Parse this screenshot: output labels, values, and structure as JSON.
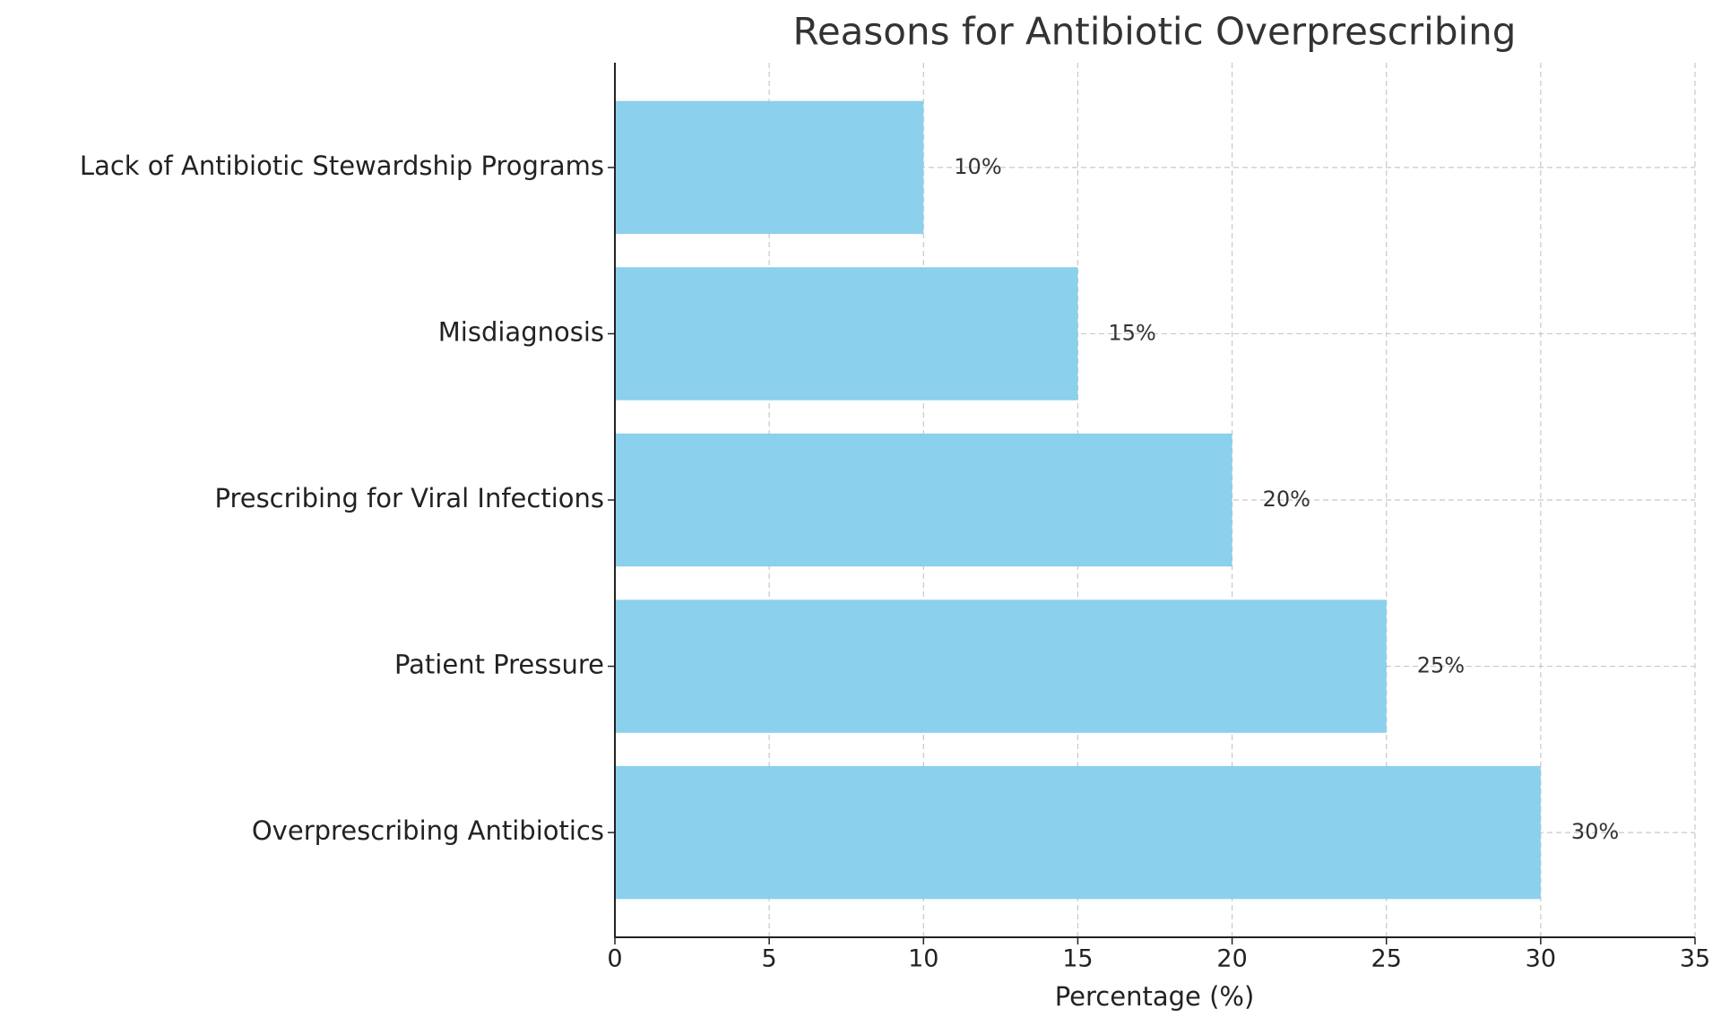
{
  "chart_data": {
    "type": "barh",
    "title": "Reasons for Antibiotic Overprescribing",
    "xlabel": "Percentage (%)",
    "categories": [
      "Lack of Antibiotic Stewardship Programs",
      "Misdiagnosis",
      "Prescribing for Viral Infections",
      "Patient Pressure",
      "Overprescribing Antibiotics"
    ],
    "values": [
      10,
      15,
      20,
      25,
      30
    ],
    "value_labels": [
      "10%",
      "15%",
      "20%",
      "25%",
      "30%"
    ],
    "color": "#87ceeb",
    "xlim": [
      0,
      35
    ],
    "xticks": [
      0,
      5,
      10,
      15,
      20,
      25,
      30,
      35
    ],
    "grid": true
  }
}
